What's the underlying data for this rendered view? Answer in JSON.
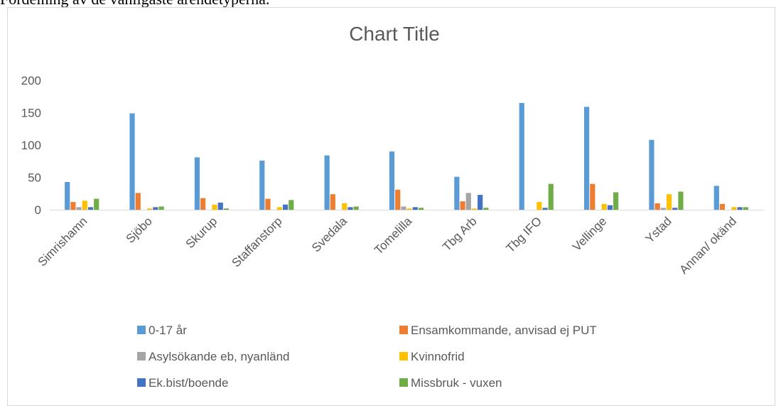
{
  "document_text": "Fördelning av de vanligaste ärendetyperna.",
  "chart_data": {
    "type": "bar",
    "title": "Chart Title",
    "categories": [
      "Simrishamn",
      "Sjöbo",
      "Skurup",
      "Staffanstorp",
      "Svedala",
      "Tomelilla",
      "Tbg Arb",
      "Tbg IFO",
      "Vellinge",
      "Ystad",
      "Annan/ okänd"
    ],
    "series": [
      {
        "name": "0-17 år",
        "color": "#5b9bd5",
        "values": [
          43,
          149,
          81,
          76,
          84,
          90,
          51,
          165,
          159,
          108,
          37
        ]
      },
      {
        "name": "Ensamkommande, anvisad ej PUT",
        "color": "#ed7d31",
        "values": [
          12,
          26,
          18,
          17,
          24,
          31,
          13,
          0,
          40,
          10,
          9
        ]
      },
      {
        "name": "Asylsökande eb, nyanländ",
        "color": "#a5a5a5",
        "values": [
          4,
          0,
          0,
          0,
          0,
          5,
          26,
          0,
          0,
          3,
          0
        ]
      },
      {
        "name": "Kvinnofrid",
        "color": "#ffc000",
        "values": [
          14,
          2,
          8,
          4,
          10,
          2,
          2,
          12,
          9,
          24,
          4
        ]
      },
      {
        "name": "Ek.bist/boende",
        "color": "#4472c4",
        "values": [
          4,
          4,
          11,
          8,
          4,
          4,
          23,
          3,
          7,
          3,
          4
        ]
      },
      {
        "name": "Missbruk - vuxen",
        "color": "#70ad47",
        "values": [
          17,
          5,
          2,
          15,
          5,
          3,
          3,
          40,
          27,
          28,
          4
        ]
      }
    ],
    "ylim": [
      0,
      200
    ],
    "yticks": [
      0,
      50,
      100,
      150,
      200
    ],
    "grid": false,
    "legend": "bottom"
  }
}
